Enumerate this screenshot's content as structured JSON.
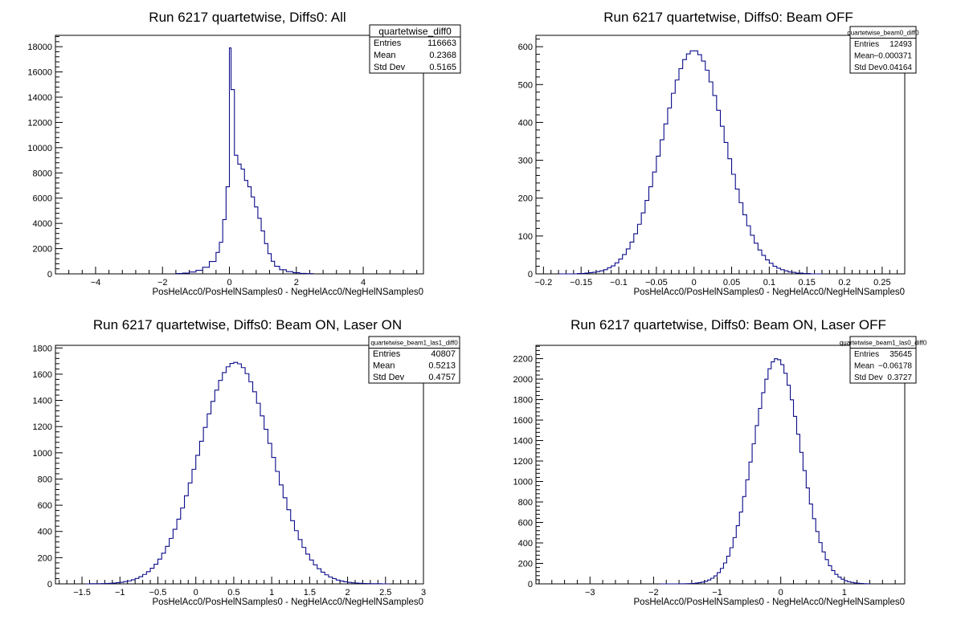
{
  "chart_data": [
    {
      "type": "bar",
      "title": "Run 6217 quartetwise, Diffs0: All",
      "xlabel": "PosHelAcc0/PosHelNSamples0 - NegHelAcc0/NegHelNSamples0",
      "ylabel": "",
      "xlim": [
        -5.2,
        5.8
      ],
      "ylim": [
        0,
        18900
      ],
      "xticks": [
        -4,
        -2,
        0,
        2,
        4
      ],
      "yticks": [
        0,
        2000,
        4000,
        6000,
        8000,
        10000,
        12000,
        14000,
        16000,
        18000
      ],
      "stats": {
        "name": "quartetwise_diff0",
        "rows": [
          {
            "label": "Entries",
            "value": "116663"
          },
          {
            "label": "Mean",
            "value": "0.2368"
          },
          {
            "label": "Std Dev",
            "value": "0.5165"
          }
        ]
      },
      "bins": {
        "edges": [
          -1.6,
          -1.4,
          -1.2,
          -1.0,
          -0.8,
          -0.6,
          -0.4,
          -0.3,
          -0.2,
          -0.1,
          0.0,
          0.05,
          0.15,
          0.25,
          0.35,
          0.45,
          0.55,
          0.65,
          0.75,
          0.85,
          0.95,
          1.05,
          1.15,
          1.25,
          1.35,
          1.5,
          1.7,
          1.9,
          2.1,
          2.3,
          2.5
        ],
        "counts": [
          30,
          60,
          150,
          280,
          520,
          980,
          1700,
          2500,
          4300,
          6900,
          17900,
          14600,
          9400,
          8700,
          8300,
          7400,
          6900,
          6100,
          5300,
          4400,
          3400,
          2400,
          1600,
          1000,
          600,
          330,
          180,
          90,
          40,
          20
        ]
      }
    },
    {
      "type": "bar",
      "title": "Run 6217 quartetwise, Diffs0: Beam OFF",
      "xlabel": "PosHelAcc0/PosHelNSamples0 - NegHelAcc0/NegHelNSamples0",
      "ylabel": "",
      "xlim": [
        -0.21,
        0.28
      ],
      "ylim": [
        0,
        630
      ],
      "xticks": [
        -0.2,
        -0.15,
        -0.1,
        -0.05,
        0,
        0.05,
        0.1,
        0.15,
        0.2,
        0.25
      ],
      "yticks": [
        0,
        100,
        200,
        300,
        400,
        500,
        600
      ],
      "stats": {
        "name": "quartetwise_beam0_diff0",
        "rows": [
          {
            "label": "Entries",
            "value": "12493"
          },
          {
            "label": "Mean",
            "value": "−0.000371"
          },
          {
            "label": "Std Dev",
            "value": "0.04164"
          }
        ]
      },
      "bins": {
        "mu": -0.0004,
        "sigma": 0.0416,
        "peak": 590,
        "xmin": -0.18,
        "xmax": 0.17,
        "width": 0.005
      }
    },
    {
      "type": "bar",
      "title": "Run 6217 quartetwise, Diffs0: Beam ON, Laser ON",
      "xlabel": "PosHelAcc0/PosHelNSamples0 - NegHelAcc0/NegHelNSamples0",
      "ylabel": "",
      "xlim": [
        -1.85,
        3.0
      ],
      "ylim": [
        0,
        1820
      ],
      "xticks": [
        -1.5,
        -1,
        -0.5,
        0,
        0.5,
        1,
        1.5,
        2,
        2.5,
        3
      ],
      "yticks": [
        0,
        200,
        400,
        600,
        800,
        1000,
        1200,
        1400,
        1600,
        1800
      ],
      "stats": {
        "name": "quartetwise_beam1_las1_diff0",
        "rows": [
          {
            "label": "Entries",
            "value": "40807"
          },
          {
            "label": "Mean",
            "value": "0.5213"
          },
          {
            "label": "Std Dev",
            "value": "0.4757"
          }
        ]
      },
      "bins": {
        "mu": 0.5213,
        "sigma": 0.4757,
        "peak": 1690,
        "xmin": -1.45,
        "xmax": 2.55,
        "width": 0.05
      }
    },
    {
      "type": "bar",
      "title": "Run 6217 quartetwise, Diffs0: Beam ON, Laser OFF",
      "xlabel": "PosHelAcc0/PosHelNSamples0 - NegHelAcc0/NegHelNSamples0",
      "ylabel": "",
      "xlim": [
        -3.85,
        1.95
      ],
      "ylim": [
        0,
        2330
      ],
      "xticks": [
        -3,
        -2,
        -1,
        0,
        1
      ],
      "yticks": [
        0,
        200,
        400,
        600,
        800,
        1000,
        1200,
        1400,
        1600,
        1800,
        2000,
        2200
      ],
      "stats": {
        "name": "quartetwise_beam1_las0_diff0",
        "rows": [
          {
            "label": "Entries",
            "value": "35645"
          },
          {
            "label": "Mean",
            "value": "−0.06178"
          },
          {
            "label": "Std Dev",
            "value": "0.3727"
          }
        ]
      },
      "bins": {
        "mu": -0.0618,
        "sigma": 0.3727,
        "peak": 2200,
        "xmin": -1.9,
        "xmax": 1.4,
        "width": 0.05
      }
    }
  ]
}
